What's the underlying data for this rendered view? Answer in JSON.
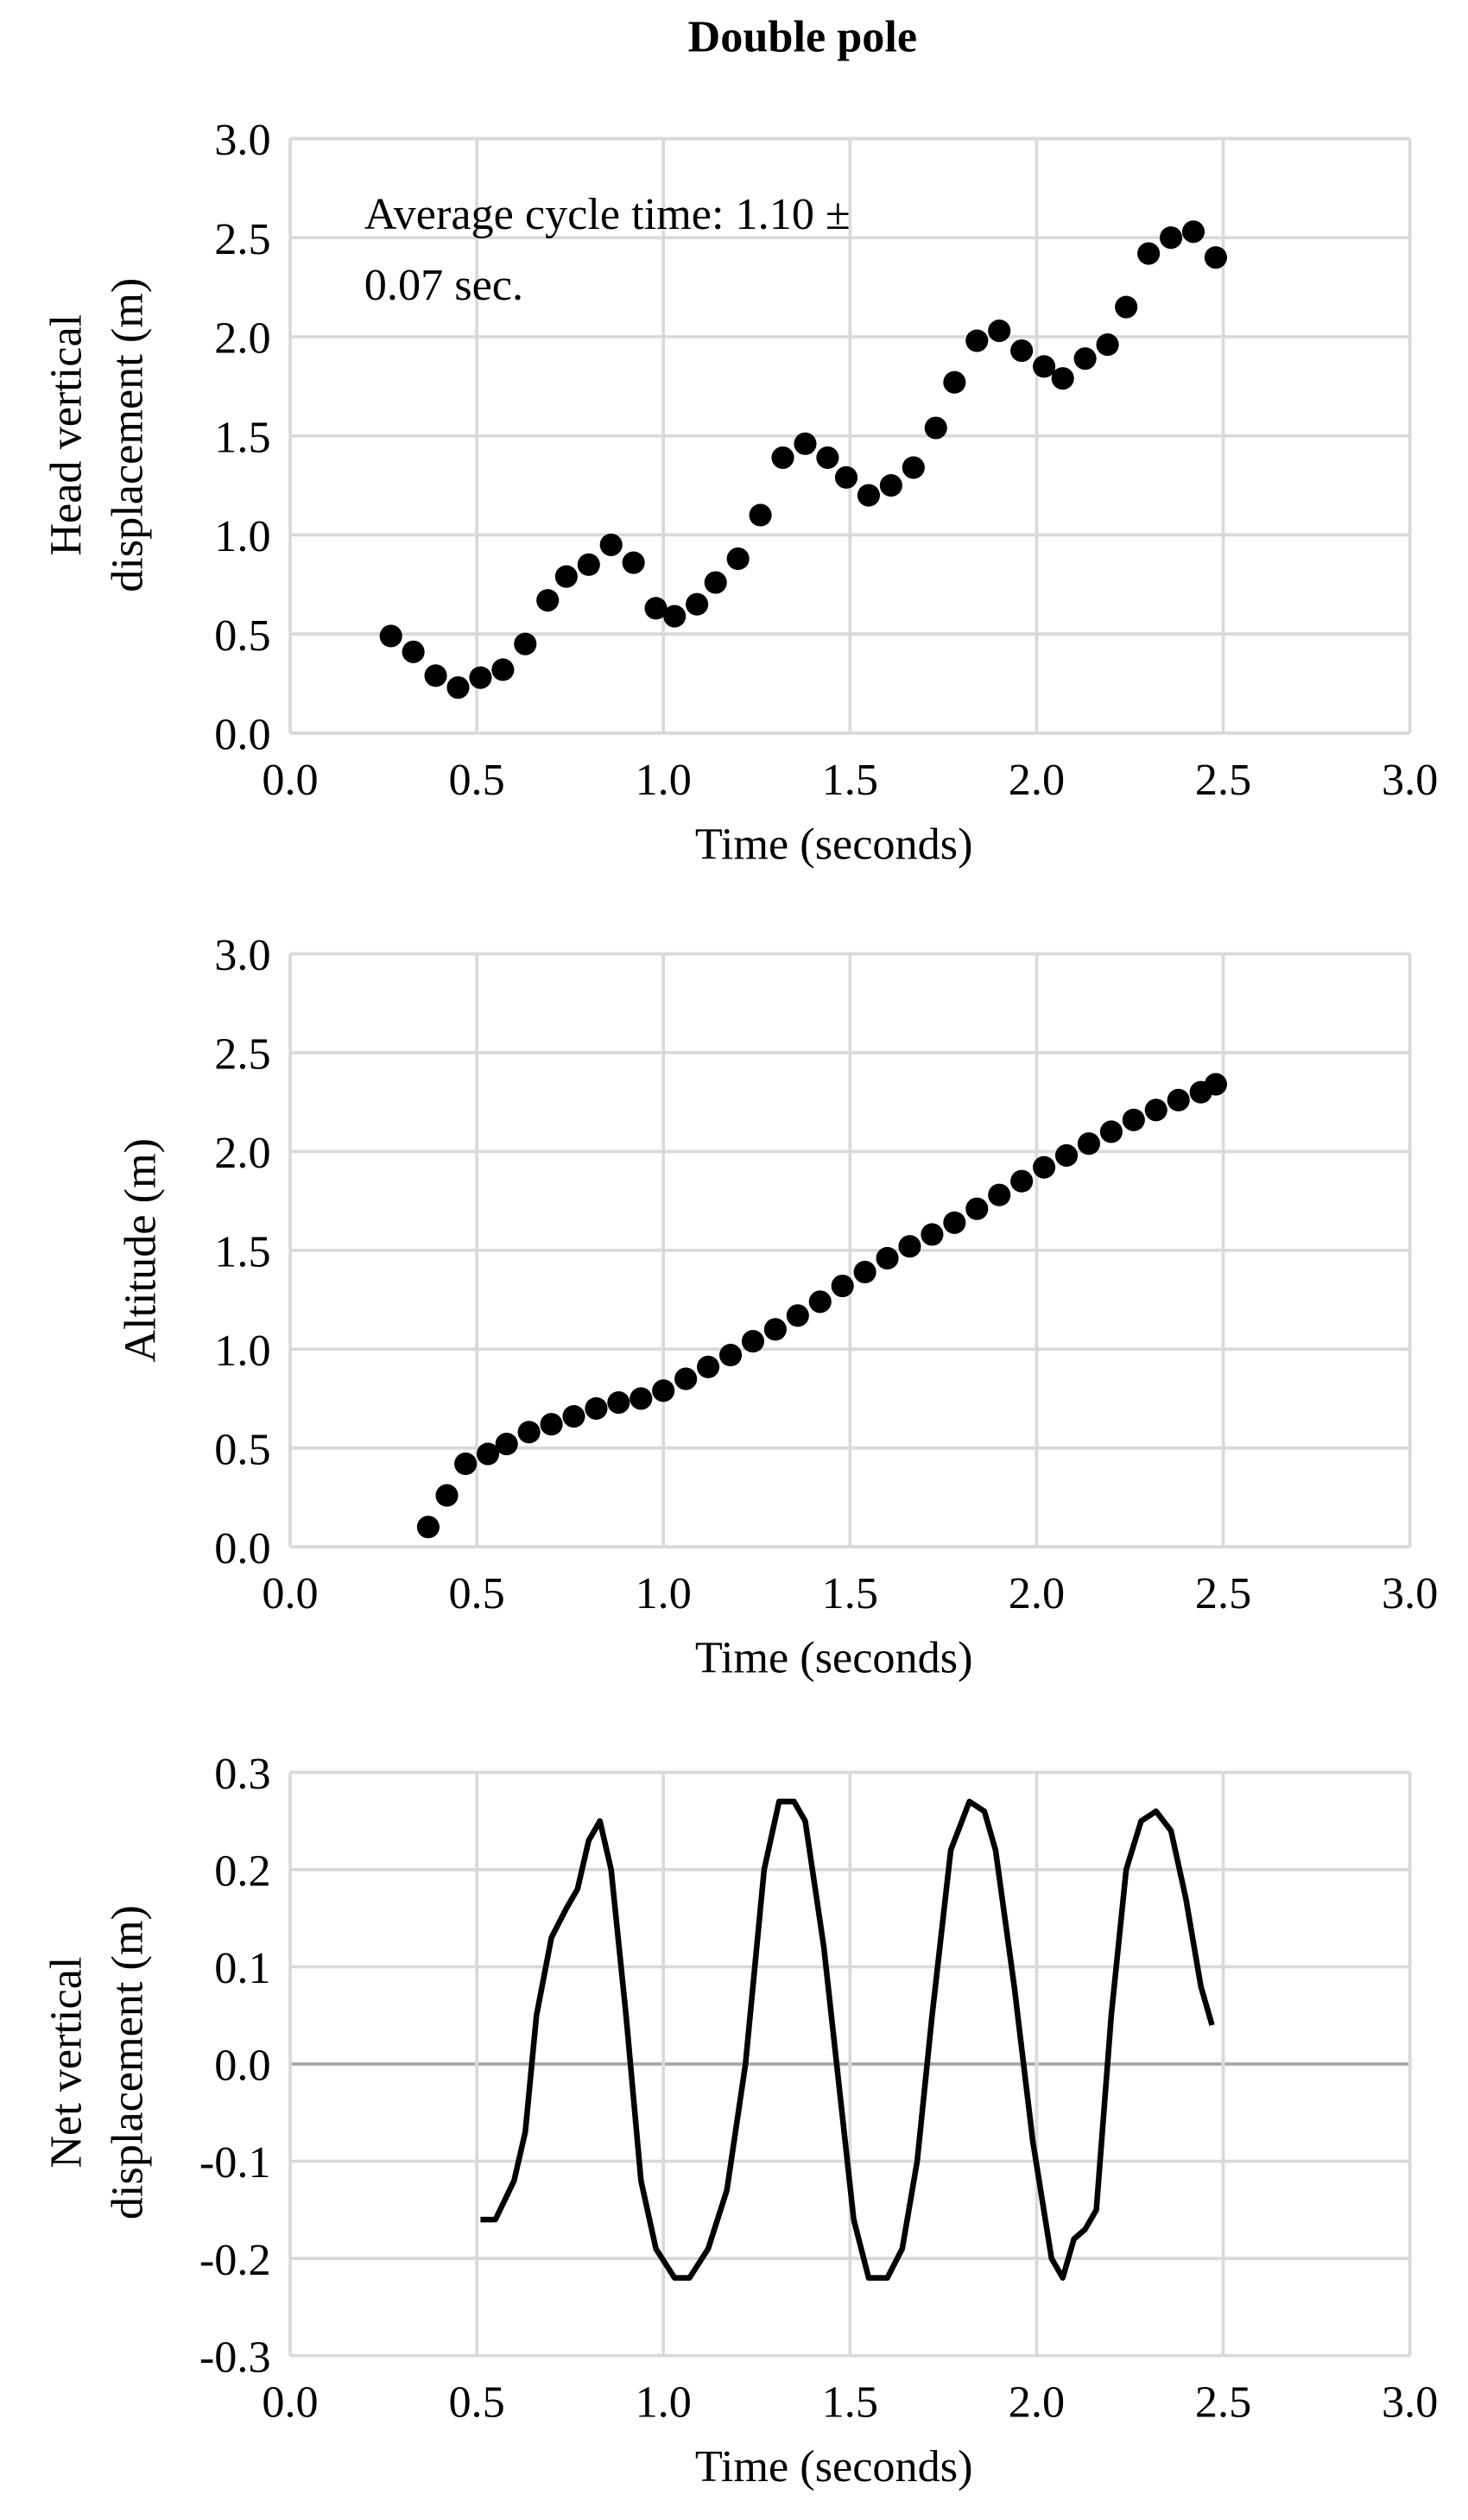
{
  "title": "Double pole",
  "chart_data": [
    {
      "type": "scatter",
      "ylabel": [
        "Head vertical",
        "displacement (m)"
      ],
      "xlabel": "Time (seconds)",
      "annotation": [
        "Average cycle time: 1.10 ±",
        "0.07 sec."
      ],
      "color": "#000000",
      "grid": true,
      "xlim": [
        0,
        3
      ],
      "ylim": [
        0,
        3
      ],
      "xticks": [
        {
          "value": 0,
          "label": "0.0"
        },
        0.5,
        {
          "value": 1,
          "label": "1.0"
        },
        1.5,
        {
          "value": 2,
          "label": "2.0"
        },
        2.5,
        {
          "value": 3,
          "label": "3.0"
        }
      ],
      "yticks": [
        {
          "value": 0,
          "label": "0.0"
        },
        0.5,
        {
          "value": 1,
          "label": "1.0"
        },
        1.5,
        {
          "value": 2,
          "label": "2.0"
        },
        2.5,
        {
          "value": 3,
          "label": "3.0"
        }
      ],
      "x": [
        0.27,
        0.33,
        0.39,
        0.45,
        0.51,
        0.57,
        0.63,
        0.69,
        0.74,
        0.8,
        0.86,
        0.92,
        0.98,
        1.03,
        1.09,
        1.14,
        1.2,
        1.26,
        1.32,
        1.38,
        1.44,
        1.49,
        1.55,
        1.61,
        1.67,
        1.73,
        1.78,
        1.84,
        1.9,
        1.96,
        2.02,
        2.07,
        2.13,
        2.19,
        2.24,
        2.3,
        2.36,
        2.42,
        2.48
      ],
      "values": [
        0.49,
        0.41,
        0.29,
        0.23,
        0.28,
        0.32,
        0.45,
        0.67,
        0.79,
        0.85,
        0.95,
        0.86,
        0.63,
        0.59,
        0.65,
        0.76,
        0.88,
        1.1,
        1.39,
        1.46,
        1.39,
        1.29,
        1.2,
        1.25,
        1.34,
        1.54,
        1.77,
        1.98,
        2.03,
        1.93,
        1.85,
        1.79,
        1.89,
        1.96,
        2.15,
        2.42,
        2.5,
        2.53,
        2.4
      ]
    },
    {
      "type": "scatter",
      "ylabel": [
        "Altitude (m)"
      ],
      "xlabel": "Time (seconds)",
      "color": "#000000",
      "grid": true,
      "xlim": [
        0,
        3
      ],
      "ylim": [
        0,
        3
      ],
      "xticks": [
        {
          "value": 0,
          "label": "0.0"
        },
        0.5,
        {
          "value": 1,
          "label": "1.0"
        },
        1.5,
        {
          "value": 2,
          "label": "2.0"
        },
        2.5,
        {
          "value": 3,
          "label": "3.0"
        }
      ],
      "yticks": [
        {
          "value": 0,
          "label": "0.0"
        },
        0.5,
        {
          "value": 1,
          "label": "1.0"
        },
        1.5,
        {
          "value": 2,
          "label": "2.0"
        },
        2.5,
        {
          "value": 3,
          "label": "3.0"
        }
      ],
      "x": [
        0.37,
        0.42,
        0.47,
        0.53,
        0.58,
        0.64,
        0.7,
        0.76,
        0.82,
        0.88,
        0.94,
        1.0,
        1.06,
        1.12,
        1.18,
        1.24,
        1.3,
        1.36,
        1.42,
        1.48,
        1.54,
        1.6,
        1.66,
        1.72,
        1.78,
        1.84,
        1.9,
        1.96,
        2.02,
        2.08,
        2.14,
        2.2,
        2.26,
        2.32,
        2.38,
        2.44,
        2.48
      ],
      "values": [
        0.1,
        0.26,
        0.42,
        0.47,
        0.52,
        0.58,
        0.62,
        0.66,
        0.7,
        0.73,
        0.75,
        0.79,
        0.85,
        0.91,
        0.97,
        1.04,
        1.1,
        1.17,
        1.24,
        1.32,
        1.39,
        1.46,
        1.52,
        1.58,
        1.64,
        1.71,
        1.78,
        1.85,
        1.92,
        1.98,
        2.04,
        2.1,
        2.16,
        2.21,
        2.26,
        2.3,
        2.34
      ]
    },
    {
      "type": "line",
      "ylabel": [
        "Net vertical",
        "displacement (m)"
      ],
      "xlabel": "Time (seconds)",
      "color": "#000000",
      "grid": true,
      "xlim": [
        0,
        3
      ],
      "ylim": [
        -0.3,
        0.3
      ],
      "xticks": [
        {
          "value": 0,
          "label": "0.0"
        },
        0.5,
        {
          "value": 1,
          "label": "1.0"
        },
        1.5,
        {
          "value": 2,
          "label": "2.0"
        },
        2.5,
        {
          "value": 3,
          "label": "3.0"
        }
      ],
      "yticks": [
        0.3,
        0.2,
        0.1,
        {
          "value": 0,
          "label": "0.0"
        },
        -0.1,
        -0.2,
        -0.3
      ],
      "x": [
        0.51,
        0.55,
        0.6,
        0.63,
        0.66,
        0.7,
        0.74,
        0.77,
        0.8,
        0.83,
        0.86,
        0.9,
        0.94,
        0.98,
        1.03,
        1.07,
        1.12,
        1.17,
        1.22,
        1.27,
        1.31,
        1.35,
        1.38,
        1.43,
        1.47,
        1.51,
        1.55,
        1.6,
        1.64,
        1.68,
        1.72,
        1.77,
        1.82,
        1.86,
        1.89,
        1.94,
        1.99,
        2.04,
        2.07,
        2.1,
        2.13,
        2.16,
        2.2,
        2.24,
        2.28,
        2.32,
        2.36,
        2.4,
        2.44,
        2.47
      ],
      "values": [
        -0.16,
        -0.16,
        -0.12,
        -0.07,
        0.05,
        0.13,
        0.16,
        0.18,
        0.23,
        0.25,
        0.2,
        0.05,
        -0.12,
        -0.19,
        -0.22,
        -0.22,
        -0.19,
        -0.13,
        0.0,
        0.2,
        0.27,
        0.27,
        0.25,
        0.12,
        -0.02,
        -0.16,
        -0.22,
        -0.22,
        -0.19,
        -0.1,
        0.05,
        0.22,
        0.27,
        0.26,
        0.22,
        0.08,
        -0.08,
        -0.2,
        -0.22,
        -0.18,
        -0.17,
        -0.15,
        0.05,
        0.2,
        0.25,
        0.26,
        0.24,
        0.17,
        0.08,
        0.04
      ]
    }
  ]
}
